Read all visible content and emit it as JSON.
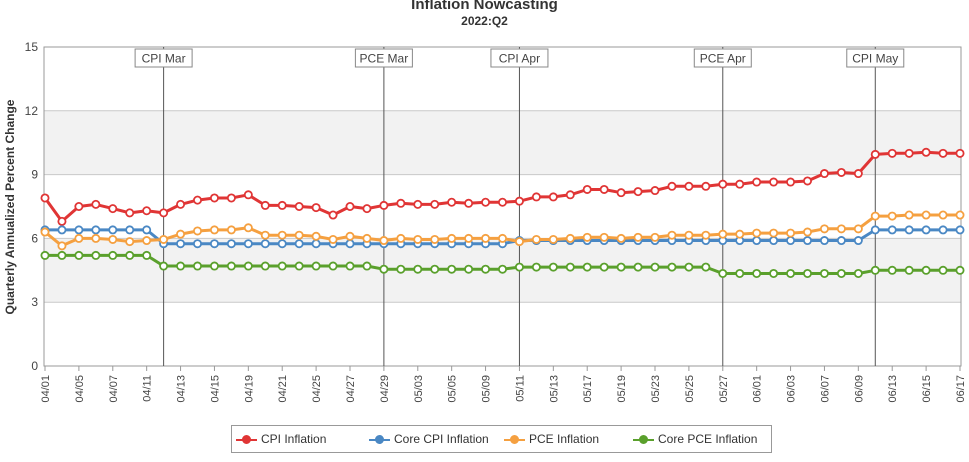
{
  "title": "Inflation Nowcasting",
  "subtitle": "2022:Q2",
  "chart_data": {
    "type": "line",
    "ylabel": "Quarterly Annualized Percent Change",
    "ylim": [
      0,
      15
    ],
    "yticks": [
      0,
      3,
      6,
      9,
      12,
      15
    ],
    "grid": true,
    "legend_position": "bottom",
    "x": [
      "04/01",
      "04/04",
      "04/05",
      "04/06",
      "04/07",
      "04/08",
      "04/11",
      "04/12",
      "04/13",
      "04/14",
      "04/15",
      "04/18",
      "04/19",
      "04/20",
      "04/21",
      "04/22",
      "04/25",
      "04/26",
      "04/27",
      "04/28",
      "04/29",
      "05/02",
      "05/03",
      "05/04",
      "05/05",
      "05/06",
      "05/09",
      "05/10",
      "05/11",
      "05/12",
      "05/13",
      "05/16",
      "05/17",
      "05/18",
      "05/19",
      "05/20",
      "05/23",
      "05/24",
      "05/25",
      "05/26",
      "05/27",
      "05/31",
      "06/01",
      "06/02",
      "06/03",
      "06/06",
      "06/07",
      "06/08",
      "06/09",
      "06/10",
      "06/13",
      "06/14",
      "06/15",
      "06/16",
      "06/17"
    ],
    "xtick_labels": [
      "04/01",
      "04/05",
      "04/07",
      "04/11",
      "04/13",
      "04/15",
      "04/19",
      "04/21",
      "04/25",
      "04/27",
      "04/29",
      "05/03",
      "05/05",
      "05/09",
      "05/11",
      "05/13",
      "05/17",
      "05/19",
      "05/23",
      "05/25",
      "05/27",
      "06/01",
      "06/03",
      "06/07",
      "06/09",
      "06/13",
      "06/15",
      "06/17"
    ],
    "series": [
      {
        "name": "CPI Inflation",
        "color": "#e03535",
        "values": [
          7.9,
          6.8,
          7.5,
          7.6,
          7.4,
          7.2,
          7.3,
          7.2,
          7.6,
          7.8,
          7.9,
          7.9,
          8.05,
          7.55,
          7.55,
          7.5,
          7.45,
          7.1,
          7.5,
          7.4,
          7.55,
          7.65,
          7.6,
          7.6,
          7.7,
          7.65,
          7.7,
          7.7,
          7.75,
          7.95,
          7.95,
          8.05,
          8.3,
          8.3,
          8.15,
          8.2,
          8.25,
          8.45,
          8.45,
          8.45,
          8.55,
          8.55,
          8.65,
          8.65,
          8.65,
          8.7,
          9.05,
          9.1,
          9.05,
          9.95,
          10.0,
          10.0,
          10.05,
          10.0,
          10.0
        ]
      },
      {
        "name": "Core CPI Inflation",
        "color": "#4a88c4",
        "values": [
          6.4,
          6.4,
          6.4,
          6.4,
          6.4,
          6.4,
          6.4,
          5.75,
          5.75,
          5.75,
          5.75,
          5.75,
          5.75,
          5.75,
          5.75,
          5.75,
          5.75,
          5.75,
          5.75,
          5.75,
          5.75,
          5.75,
          5.75,
          5.75,
          5.75,
          5.75,
          5.75,
          5.75,
          5.9,
          5.9,
          5.9,
          5.9,
          5.9,
          5.9,
          5.9,
          5.9,
          5.9,
          5.9,
          5.9,
          5.9,
          5.9,
          5.9,
          5.9,
          5.9,
          5.9,
          5.9,
          5.9,
          5.9,
          5.9,
          6.4,
          6.4,
          6.4,
          6.4,
          6.4,
          6.4
        ]
      },
      {
        "name": "PCE Inflation",
        "color": "#f5a040",
        "values": [
          6.3,
          5.65,
          6.0,
          6.0,
          5.95,
          5.85,
          5.9,
          5.95,
          6.2,
          6.35,
          6.4,
          6.4,
          6.5,
          6.15,
          6.15,
          6.15,
          6.1,
          5.95,
          6.1,
          6.0,
          5.9,
          6.0,
          5.95,
          5.95,
          6.0,
          6.0,
          6.0,
          6.0,
          5.85,
          5.95,
          5.95,
          6.0,
          6.05,
          6.05,
          6.0,
          6.05,
          6.05,
          6.15,
          6.15,
          6.15,
          6.2,
          6.2,
          6.25,
          6.25,
          6.25,
          6.3,
          6.45,
          6.45,
          6.45,
          7.05,
          7.05,
          7.1,
          7.1,
          7.1,
          7.1
        ]
      },
      {
        "name": "Core PCE Inflation",
        "color": "#5aa02c",
        "values": [
          5.2,
          5.2,
          5.2,
          5.2,
          5.2,
          5.2,
          5.2,
          4.7,
          4.7,
          4.7,
          4.7,
          4.7,
          4.7,
          4.7,
          4.7,
          4.7,
          4.7,
          4.7,
          4.7,
          4.7,
          4.55,
          4.55,
          4.55,
          4.55,
          4.55,
          4.55,
          4.55,
          4.55,
          4.65,
          4.65,
          4.65,
          4.65,
          4.65,
          4.65,
          4.65,
          4.65,
          4.65,
          4.65,
          4.65,
          4.65,
          4.35,
          4.35,
          4.35,
          4.35,
          4.35,
          4.35,
          4.35,
          4.35,
          4.35,
          4.5,
          4.5,
          4.5,
          4.5,
          4.5,
          4.5
        ]
      }
    ],
    "annotations": [
      {
        "label": "CPI Mar",
        "x": "04/12"
      },
      {
        "label": "PCE Mar",
        "x": "04/29"
      },
      {
        "label": "CPI Apr",
        "x": "05/11"
      },
      {
        "label": "PCE Apr",
        "x": "05/27"
      },
      {
        "label": "CPI May",
        "x": "06/10"
      }
    ]
  }
}
